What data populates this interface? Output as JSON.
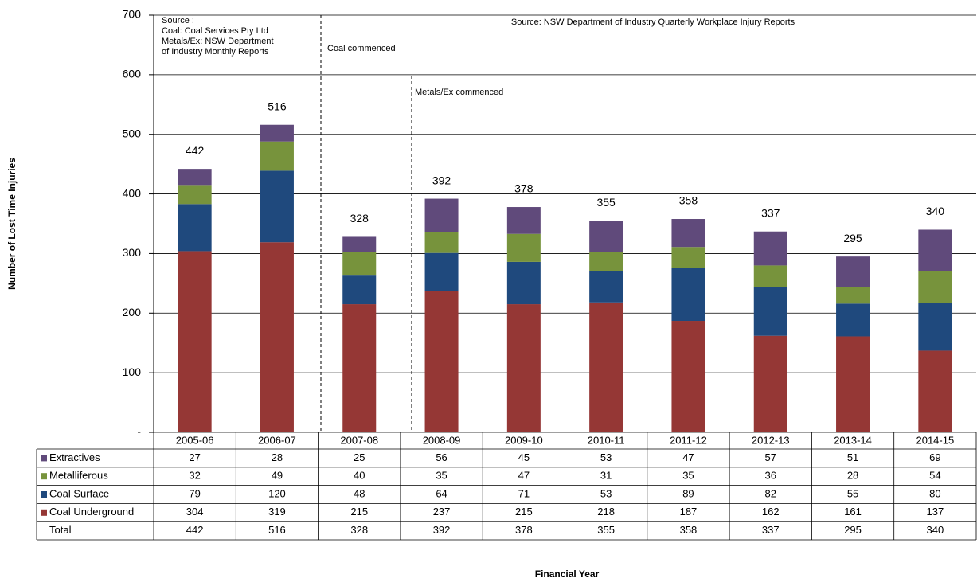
{
  "chart_data": {
    "type": "stacked_bar",
    "y_label": "Number of Lost Time Injuries",
    "x_label": "Financial Year",
    "categories": [
      "2005-06",
      "2006-07",
      "2007-08",
      "2008-09",
      "2009-10",
      "2010-11",
      "2011-12",
      "2012-13",
      "2013-14",
      "2014-15"
    ],
    "series": [
      {
        "name": "Coal Underground",
        "color": "#953735",
        "values": [
          304,
          319,
          215,
          237,
          215,
          218,
          187,
          162,
          161,
          137
        ]
      },
      {
        "name": "Coal Surface",
        "color": "#1f497d",
        "values": [
          79,
          120,
          48,
          64,
          71,
          53,
          89,
          82,
          55,
          80
        ]
      },
      {
        "name": "Metalliferous",
        "color": "#77933c",
        "values": [
          32,
          49,
          40,
          35,
          47,
          31,
          35,
          36,
          28,
          54
        ]
      },
      {
        "name": "Extractives",
        "color": "#604a7b",
        "values": [
          27,
          28,
          25,
          56,
          45,
          53,
          47,
          57,
          51,
          69
        ]
      }
    ],
    "total_label": "Total",
    "totals": [
      442,
      516,
      328,
      392,
      378,
      355,
      358,
      337,
      295,
      340
    ],
    "ylim": [
      0,
      700
    ],
    "yticks": [
      {
        "value": 0,
        "label": "-"
      },
      100,
      200,
      300,
      400,
      500,
      600,
      700
    ],
    "grid": true,
    "annotations": [
      "Source :",
      "Coal:  Coal Services Pty Ltd",
      "Metals/Ex:  NSW Department",
      "of Industry Monthly Reports",
      "Source:  NSW Department of Industry Quarterly Workplace Injury Reports",
      "Coal commenced",
      "Metals/Ex commenced"
    ]
  }
}
